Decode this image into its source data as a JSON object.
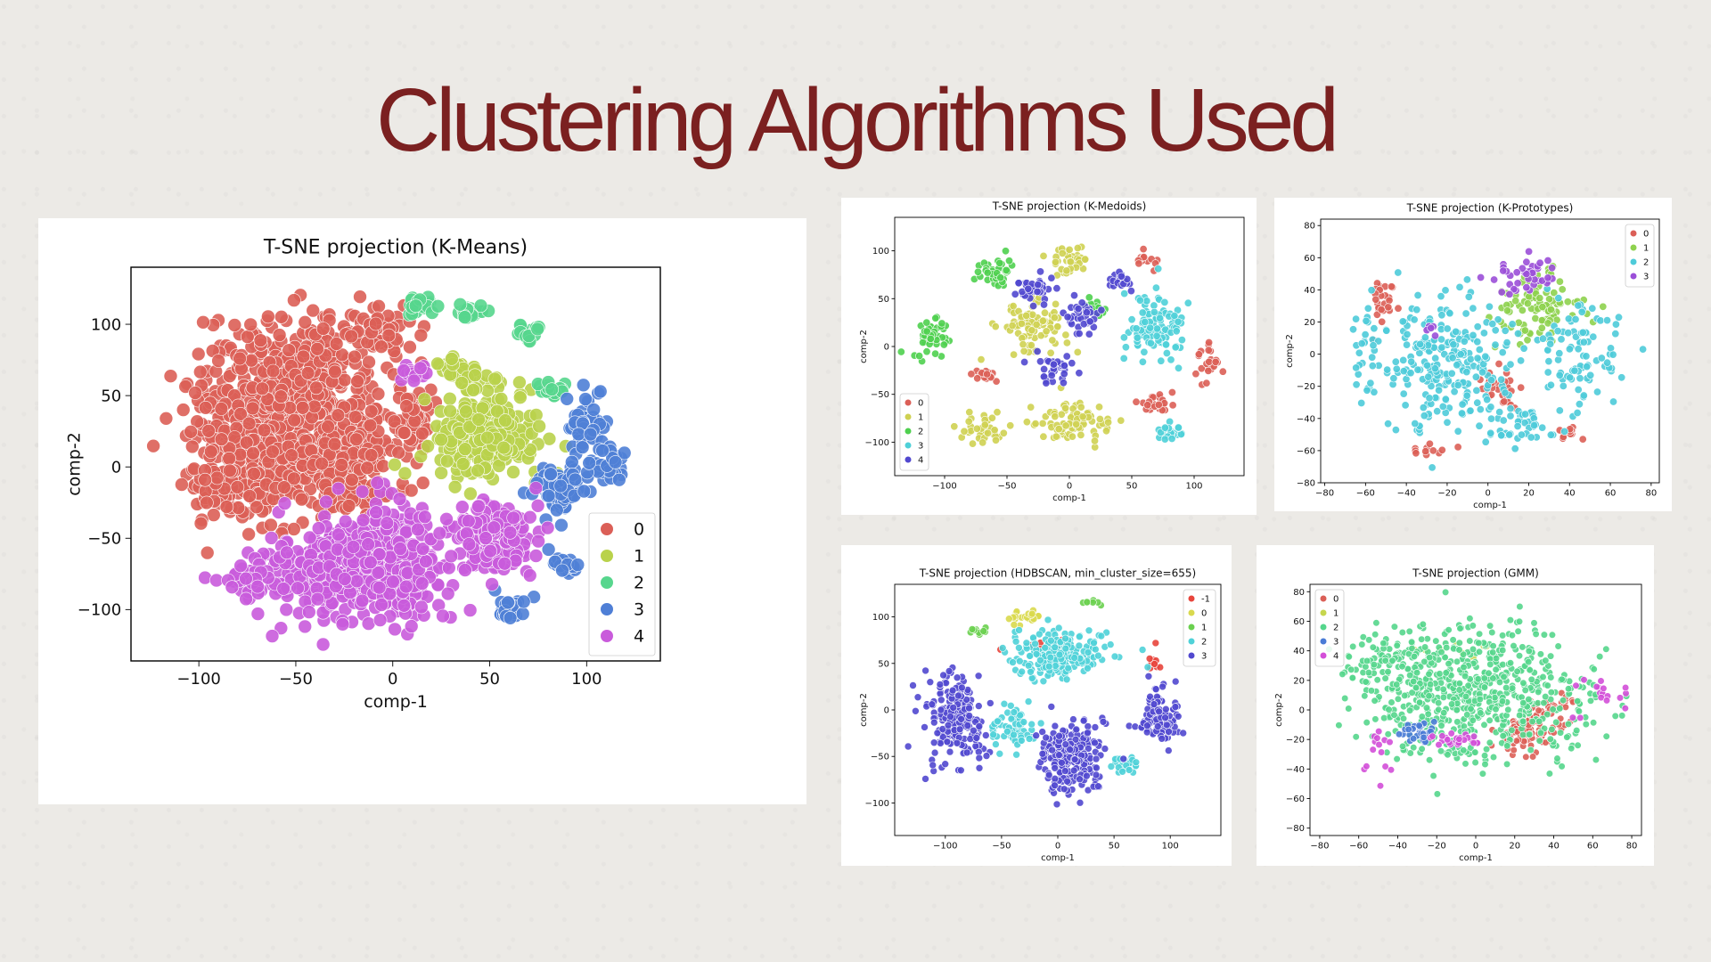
{
  "slide": {
    "title": "Clustering Algorithms Used"
  },
  "palette": {
    "-1": "#e8453c",
    "0": "#db5f57",
    "1": "#b9d24b",
    "2": "#57d68d",
    "3": "#4f7fd6",
    "4": "#c95bdb",
    "hdb0": "#d9d94e",
    "hdb1": "#6ad04f",
    "hdb2": "#4fd2d8",
    "hdb3": "#5148cf",
    "kmed1": "#cfd152",
    "kmed2": "#4fd04f",
    "kmed3": "#4fd0d8",
    "kmed4": "#5148cf",
    "kp1": "#8ed24e",
    "kp2": "#4ecbd9",
    "kp3": "#9b4fd8",
    "gmm1": "#c6d64e",
    "gmm2": "#55d68c",
    "gmm3": "#4a7bd6",
    "gmm4": "#d34fd8"
  },
  "chart_data": [
    {
      "id": "kmeans",
      "type": "scatter",
      "title": "T-SNE projection (K-Means)",
      "xlabel": "comp-1",
      "ylabel": "comp-2",
      "xlim": [
        -135,
        138
      ],
      "ylim": [
        -136,
        140
      ],
      "xticks": [
        -100,
        -50,
        0,
        50,
        100
      ],
      "yticks": [
        -100,
        -50,
        0,
        50,
        100
      ],
      "tick_labels_x": [
        "−100",
        "−50",
        "0",
        "50",
        "100"
      ],
      "tick_labels_y": [
        "−100",
        "−50",
        "0",
        "50",
        "100"
      ],
      "legend": {
        "position": "lower-right",
        "labels": [
          "0",
          "1",
          "2",
          "3",
          "4"
        ]
      },
      "series": [
        {
          "name": "0",
          "color": "#db5f57",
          "clusters": [
            [
              -55,
              55,
              45,
              48,
              900
            ],
            [
              -75,
              0,
              35,
              40,
              500
            ],
            [
              -25,
              0,
              25,
              35,
              400
            ],
            [
              -10,
              95,
              20,
              15,
              150
            ],
            [
              10,
              30,
              10,
              25,
              120
            ]
          ]
        },
        {
          "name": "1",
          "color": "#b9d24b",
          "clusters": [
            [
              48,
              20,
              25,
              30,
              450
            ],
            [
              35,
              65,
              12,
              10,
              80
            ]
          ]
        },
        {
          "name": "2",
          "color": "#57d68d",
          "clusters": [
            [
              15,
              112,
              10,
              8,
              40
            ],
            [
              40,
              110,
              10,
              8,
              40
            ],
            [
              70,
              95,
              8,
              6,
              30
            ],
            [
              80,
              55,
              8,
              6,
              30
            ]
          ]
        },
        {
          "name": "3",
          "color": "#4f7fd6",
          "clusters": [
            [
              100,
              30,
              10,
              20,
              90
            ],
            [
              85,
              -15,
              14,
              18,
              120
            ],
            [
              110,
              0,
              10,
              15,
              60
            ],
            [
              60,
              -100,
              10,
              10,
              40
            ],
            [
              90,
              -70,
              10,
              8,
              30
            ]
          ]
        },
        {
          "name": "4",
          "color": "#c95bdb",
          "clusters": [
            [
              -30,
              -75,
              35,
              30,
              700
            ],
            [
              0,
              -65,
              25,
              40,
              500
            ],
            [
              50,
              -50,
              20,
              25,
              300
            ],
            [
              -75,
              -80,
              15,
              10,
              70
            ],
            [
              10,
              65,
              8,
              5,
              30
            ]
          ]
        }
      ]
    },
    {
      "id": "kmedoids",
      "type": "scatter",
      "title": "T-SNE projection (K-Medoids)",
      "xlabel": "comp-1",
      "ylabel": "comp-2",
      "xlim": [
        -140,
        140
      ],
      "ylim": [
        -135,
        135
      ],
      "xticks": [
        -100,
        -50,
        0,
        50,
        100
      ],
      "yticks": [
        -100,
        -50,
        0,
        50,
        100
      ],
      "tick_labels_x": [
        "−100",
        "−50",
        "0",
        "50",
        "100"
      ],
      "tick_labels_y": [
        "−100",
        "−50",
        "0",
        "50",
        "100"
      ],
      "legend": {
        "position": "lower-left",
        "labels": [
          "0",
          "1",
          "2",
          "3",
          "4"
        ]
      },
      "series": [
        {
          "name": "0",
          "color": "#db5f57",
          "clusters": [
            [
              -70,
              -30,
              10,
              8,
              40
            ],
            [
              70,
              -60,
              15,
              10,
              60
            ],
            [
              110,
              -20,
              10,
              20,
              50
            ],
            [
              60,
              90,
              10,
              8,
              30
            ]
          ]
        },
        {
          "name": "1",
          "color": "#cfd152",
          "clusters": [
            [
              -30,
              20,
              25,
              25,
              200
            ],
            [
              0,
              -80,
              30,
              20,
              180
            ],
            [
              0,
              90,
              15,
              15,
              80
            ],
            [
              -70,
              -85,
              20,
              15,
              80
            ]
          ]
        },
        {
          "name": "2",
          "color": "#4fd04f",
          "clusters": [
            [
              -110,
              10,
              15,
              25,
              100
            ],
            [
              -60,
              80,
              15,
              15,
              80
            ],
            [
              20,
              40,
              10,
              10,
              40
            ]
          ]
        },
        {
          "name": "3",
          "color": "#4fd0d8",
          "clusters": [
            [
              70,
              20,
              25,
              35,
              250
            ],
            [
              80,
              -90,
              15,
              10,
              50
            ]
          ]
        },
        {
          "name": "4",
          "color": "#5148cf",
          "clusters": [
            [
              -30,
              60,
              15,
              15,
              90
            ],
            [
              10,
              30,
              15,
              15,
              80
            ],
            [
              -10,
              -25,
              15,
              15,
              80
            ],
            [
              40,
              70,
              10,
              10,
              50
            ]
          ]
        }
      ]
    },
    {
      "id": "kproto",
      "type": "scatter",
      "title": "T-SNE projection (K-Prototypes)",
      "xlabel": "comp-1",
      "ylabel": "comp-2",
      "xlim": [
        -82,
        84
      ],
      "ylim": [
        -80,
        84
      ],
      "xticks": [
        -80,
        -60,
        -40,
        -20,
        0,
        20,
        40,
        60,
        80
      ],
      "yticks": [
        -80,
        -60,
        -40,
        -20,
        0,
        20,
        40,
        60,
        80
      ],
      "tick_labels_x": [
        "−80",
        "−60",
        "−40",
        "−20",
        "0",
        "20",
        "40",
        "60",
        "80"
      ],
      "tick_labels_y": [
        "−80",
        "−60",
        "−40",
        "−20",
        "0",
        "20",
        "40",
        "60",
        "80"
      ],
      "legend": {
        "position": "top-right",
        "labels": [
          "0",
          "1",
          "2",
          "3"
        ]
      },
      "series": [
        {
          "name": "0",
          "color": "#db5f57",
          "clusters": [
            [
              -50,
              35,
              8,
              15,
              60
            ],
            [
              5,
              -20,
              10,
              15,
              70
            ],
            [
              40,
              -50,
              8,
              5,
              25
            ],
            [
              -30,
              -60,
              10,
              4,
              25
            ]
          ]
        },
        {
          "name": "1",
          "color": "#8ed24e",
          "clusters": [
            [
              25,
              30,
              20,
              20,
              200
            ]
          ]
        },
        {
          "name": "2",
          "color": "#4ecbd9",
          "clusters": [
            [
              -20,
              -5,
              30,
              40,
              550
            ],
            [
              45,
              0,
              20,
              35,
              200
            ],
            [
              -60,
              0,
              10,
              30,
              60
            ],
            [
              15,
              -45,
              20,
              15,
              100
            ]
          ]
        },
        {
          "name": "3",
          "color": "#9b4fd8",
          "clusters": [
            [
              20,
              50,
              18,
              12,
              90
            ],
            [
              -30,
              15,
              5,
              5,
              10
            ]
          ]
        }
      ]
    },
    {
      "id": "hdbscan",
      "type": "scatter",
      "title": "T-SNE projection (HDBSCAN, min_cluster_size=655)",
      "xlabel": "comp-1",
      "ylabel": "comp-2",
      "xlim": [
        -145,
        145
      ],
      "ylim": [
        -135,
        135
      ],
      "xticks": [
        -100,
        -50,
        0,
        50,
        100
      ],
      "yticks": [
        -100,
        -50,
        0,
        50,
        100
      ],
      "tick_labels_x": [
        "−100",
        "−50",
        "0",
        "50",
        "100"
      ],
      "tick_labels_y": [
        "−100",
        "−50",
        "0",
        "50",
        "100"
      ],
      "legend": {
        "position": "top-right",
        "labels": [
          "-1",
          "0",
          "1",
          "2",
          "3"
        ]
      },
      "series": [
        {
          "name": "-1",
          "color": "#e8453c",
          "clusters": [
            [
              85,
              50,
              10,
              15,
              20
            ],
            [
              -10,
              70,
              30,
              10,
              20
            ]
          ]
        },
        {
          "name": "0",
          "color": "#d9d94e",
          "clusters": [
            [
              -30,
              100,
              20,
              8,
              50
            ]
          ]
        },
        {
          "name": "1",
          "color": "#6ad04f",
          "clusters": [
            [
              -70,
              85,
              10,
              5,
              20
            ],
            [
              30,
              115,
              8,
              4,
              15
            ]
          ]
        },
        {
          "name": "2",
          "color": "#4fd2d8",
          "clusters": [
            [
              0,
              60,
              45,
              25,
              500
            ],
            [
              -40,
              -20,
              20,
              25,
              150
            ],
            [
              60,
              -60,
              15,
              10,
              60
            ]
          ]
        },
        {
          "name": "3",
          "color": "#5148cf",
          "clusters": [
            [
              -90,
              -10,
              25,
              45,
              500
            ],
            [
              10,
              -50,
              30,
              40,
              500
            ],
            [
              90,
              -10,
              20,
              30,
              250
            ]
          ]
        }
      ]
    },
    {
      "id": "gmm",
      "type": "scatter",
      "title": "T-SNE projection (GMM)",
      "xlabel": "comp-1",
      "ylabel": "comp-2",
      "xlim": [
        -85,
        85
      ],
      "ylim": [
        -85,
        85
      ],
      "xticks": [
        -80,
        -60,
        -40,
        -20,
        0,
        20,
        40,
        60,
        80
      ],
      "yticks": [
        -80,
        -60,
        -40,
        -20,
        0,
        20,
        40,
        60,
        80
      ],
      "tick_labels_x": [
        "−80",
        "−60",
        "−40",
        "−20",
        "0",
        "20",
        "40",
        "60",
        "80"
      ],
      "tick_labels_y": [
        "−80",
        "−60",
        "−40",
        "−20",
        "0",
        "20",
        "40",
        "60",
        "80"
      ],
      "legend": {
        "position": "top-left",
        "labels": [
          "0",
          "1",
          "2",
          "3",
          "4"
        ]
      },
      "series": [
        {
          "name": "0",
          "color": "#db5f57",
          "clusters": [
            [
              25,
              -15,
              15,
              15,
              200
            ],
            [
              40,
              0,
              10,
              10,
              60
            ]
          ]
        },
        {
          "name": "1",
          "color": "#c6d64e",
          "clusters": [
            [
              0,
              40,
              30,
              10,
              20
            ]
          ]
        },
        {
          "name": "2",
          "color": "#55d68c",
          "clusters": [
            [
              0,
              10,
              55,
              45,
              1400
            ],
            [
              -40,
              30,
              25,
              25,
              200
            ]
          ]
        },
        {
          "name": "3",
          "color": "#4a7bd6",
          "clusters": [
            [
              -30,
              -15,
              8,
              8,
              80
            ]
          ]
        },
        {
          "name": "4",
          "color": "#d34fd8",
          "clusters": [
            [
              -10,
              -20,
              15,
              5,
              60
            ],
            [
              -50,
              -30,
              10,
              20,
              30
            ],
            [
              60,
              10,
              20,
              15,
              40
            ]
          ]
        }
      ]
    }
  ]
}
